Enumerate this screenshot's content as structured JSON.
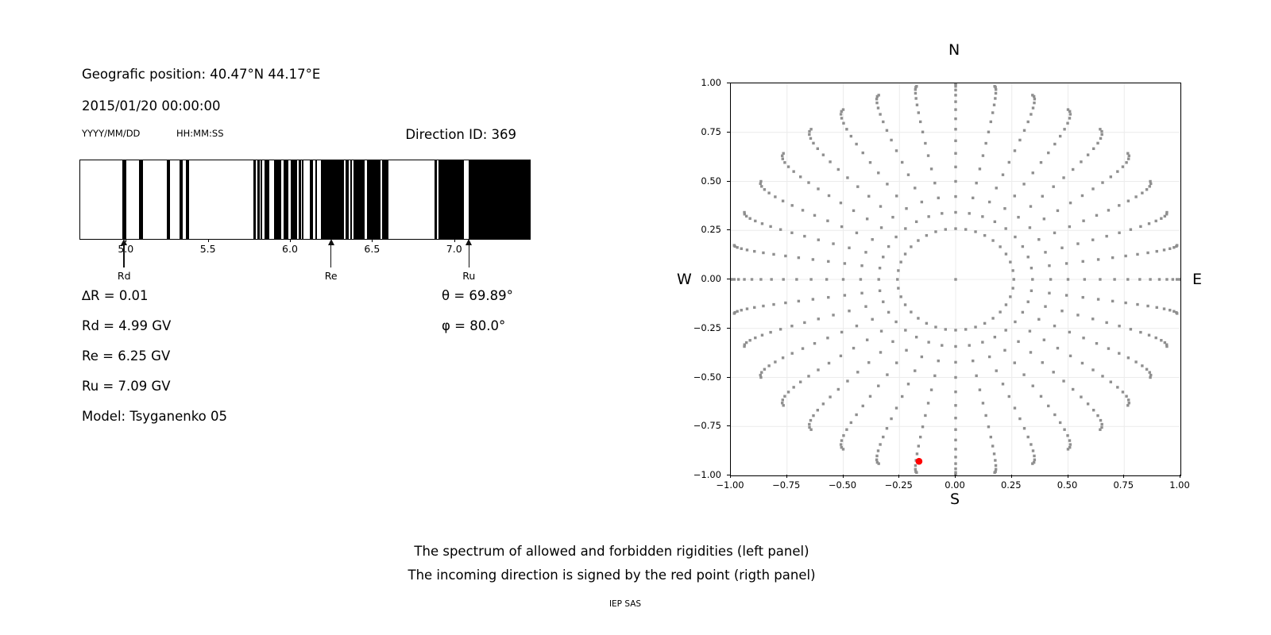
{
  "header": {
    "position_line": "Geografic position: 40.47°N 44.17°E",
    "datetime_line": "2015/01/20 00:00:00",
    "date_format_label": "YYYY/MM/DD",
    "time_format_label": "HH:MM:SS",
    "direction_id": "Direction ID: 369"
  },
  "info": {
    "delta_r": "∆R = 0.01",
    "rd": "Rd = 4.99 GV",
    "re": "Re = 6.25 GV",
    "ru": "Ru = 7.09 GV",
    "model": "Model: Tsyganenko 05",
    "theta": "θ = 69.89°",
    "phi": "φ = 80.0°"
  },
  "captions": {
    "line1": "The spectrum of allowed and forbidden rigidities (left panel)",
    "line2": "The incoming direction is signed by the red point (rigth panel)",
    "credit": "IEP SAS"
  },
  "chart_data": [
    {
      "type": "bar",
      "name": "rigidity-spectrum-barcode",
      "title": "",
      "xlabel": "",
      "ylabel": "",
      "xlim": [
        4.718,
        7.456
      ],
      "xticks": [
        5.0,
        5.5,
        6.0,
        6.5,
        7.0
      ],
      "bar_color": "#000000",
      "background": "#ffffff",
      "black_intervals_gv": [
        [
          4.974,
          4.997
        ],
        [
          5.078,
          5.098
        ],
        [
          5.246,
          5.266
        ],
        [
          5.322,
          5.34
        ],
        [
          5.363,
          5.382
        ],
        [
          5.772,
          5.789
        ],
        [
          5.796,
          5.809
        ],
        [
          5.815,
          5.828
        ],
        [
          5.839,
          5.871
        ],
        [
          5.897,
          5.944
        ],
        [
          5.955,
          5.987
        ],
        [
          6.002,
          6.041
        ],
        [
          6.05,
          6.061
        ],
        [
          6.068,
          6.079
        ],
        [
          6.115,
          6.136
        ],
        [
          6.149,
          6.161
        ],
        [
          6.182,
          6.323
        ],
        [
          6.334,
          6.352
        ],
        [
          6.361,
          6.374
        ],
        [
          6.384,
          6.452
        ],
        [
          6.466,
          6.548
        ],
        [
          6.557,
          6.597
        ],
        [
          6.874,
          6.891
        ],
        [
          6.898,
          7.053
        ],
        [
          7.085,
          7.456
        ]
      ],
      "markers": [
        {
          "label": "Rd",
          "value_gv": 4.99
        },
        {
          "label": "Re",
          "value_gv": 6.25
        },
        {
          "label": "Ru",
          "value_gv": 7.09
        }
      ]
    },
    {
      "type": "scatter",
      "name": "incoming-direction-grid",
      "compass": {
        "top": "N",
        "bottom": "S",
        "left": "W",
        "right": "E"
      },
      "xlim": [
        -1.0,
        1.0
      ],
      "ylim": [
        -1.0,
        1.0
      ],
      "xticks": [
        -1.0,
        -0.75,
        -0.5,
        -0.25,
        0.0,
        0.25,
        0.5,
        0.75,
        1.0
      ],
      "yticks": [
        1.0,
        0.75,
        0.5,
        0.25,
        0.0,
        -0.25,
        -0.5,
        -0.75,
        -1.0
      ],
      "grid": true,
      "grid_color": "#ececec",
      "dot_color": "#8f8f8f",
      "direction_grid": {
        "center_dot": true,
        "inner_ring_zenith_deg": 15,
        "azimuth_step_deg": 10,
        "spoke_zenith_deg": [
          20,
          25,
          30,
          35,
          40,
          45,
          50,
          55,
          60,
          65,
          70,
          75,
          80,
          85,
          90
        ],
        "radius_rule": "r = sin(zenith)",
        "spoke_bow_deg": 3
      },
      "red_point": {
        "x": -0.163,
        "y": -0.928,
        "color": "#ff0000",
        "theta_deg": 69.89,
        "phi_deg": 80.0
      }
    }
  ]
}
